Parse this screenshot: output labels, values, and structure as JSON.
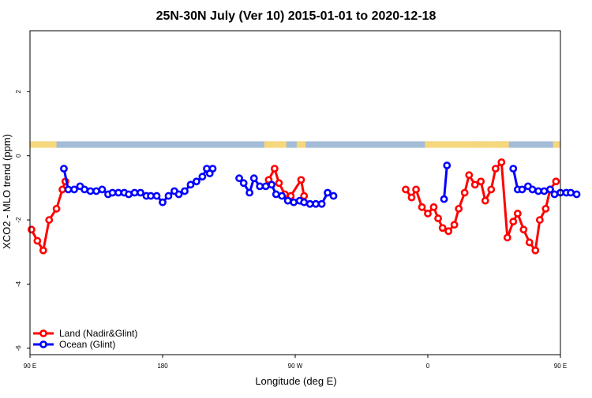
{
  "chart_data": {
    "type": "line",
    "title": "25N-30N July (Ver 10)   2015-01-01 to 2020-12-18",
    "xlabel": "Longitude (deg E)",
    "ylabel": "XCO2 - MLO trend (ppm)",
    "xlim": [
      90,
      450
    ],
    "ylim": [
      -6.2,
      3.9
    ],
    "x_ticks": [
      {
        "value": 90,
        "label": "90 E"
      },
      {
        "value": 180,
        "label": "180"
      },
      {
        "value": 270,
        "label": "90 W"
      },
      {
        "value": 360,
        "label": "0"
      },
      {
        "value": 450,
        "label": "90 E"
      },
      {
        "value": 540,
        "label": "180"
      }
    ],
    "y_ticks": [
      {
        "value": -6,
        "label": "-6"
      },
      {
        "value": -4,
        "label": "-4"
      },
      {
        "value": -2,
        "label": "-2"
      },
      {
        "value": 0,
        "label": "0"
      },
      {
        "value": 2,
        "label": "2"
      }
    ],
    "x_scale_note": "",
    "grid": false,
    "legend_position": "bottom-left",
    "land_mask": {
      "y_range": [
        0.25,
        0.45
      ],
      "ocean_color": "#a3bcd8",
      "land_color": "#f5d77c",
      "land_segments": [
        [
          90,
          108
        ],
        [
          249,
          264
        ],
        [
          271,
          277
        ],
        [
          358,
          415
        ],
        [
          393,
          396
        ],
        [
          408,
          412
        ],
        [
          445,
          450
        ]
      ]
    },
    "series": [
      {
        "name": "Land (Nadir&Glint)",
        "color": "#ff0000",
        "segments": [
          [
            [
              91,
              -2.3
            ],
            [
              95,
              -2.65
            ],
            [
              99,
              -2.95
            ],
            [
              103,
              -2.0
            ],
            [
              108,
              -1.65
            ],
            [
              112,
              -1.05
            ],
            [
              114,
              -0.8
            ]
          ],
          [
            [
              252,
              -0.75
            ],
            [
              256,
              -0.4
            ],
            [
              259,
              -0.85
            ],
            [
              263,
              -1.2
            ],
            [
              267,
              -1.25
            ],
            [
              274,
              -0.75
            ],
            [
              276,
              -1.25
            ]
          ],
          [
            [
              345,
              -1.05
            ],
            [
              349,
              -1.3
            ],
            [
              352,
              -1.05
            ],
            [
              356,
              -1.6
            ],
            [
              360,
              -1.8
            ],
            [
              364,
              -1.6
            ],
            [
              367,
              -1.95
            ],
            [
              370,
              -2.25
            ],
            [
              374,
              -2.35
            ],
            [
              378,
              -2.15
            ],
            [
              381,
              -1.65
            ],
            [
              385,
              -1.15
            ],
            [
              388,
              -0.6
            ],
            [
              392,
              -0.9
            ],
            [
              396,
              -0.8
            ],
            [
              399,
              -1.4
            ],
            [
              403,
              -1.05
            ],
            [
              406,
              -0.4
            ],
            [
              410,
              -0.2
            ],
            [
              414,
              -2.55
            ],
            [
              418,
              -2.05
            ],
            [
              421,
              -1.8
            ],
            [
              425,
              -2.3
            ],
            [
              429,
              -2.7
            ],
            [
              433,
              -2.95
            ],
            [
              436,
              -2.0
            ],
            [
              440,
              -1.65
            ],
            [
              443,
              -1.05
            ],
            [
              447,
              -0.8
            ]
          ]
        ]
      },
      {
        "name": "Ocean (Glint)",
        "color": "#0000ff",
        "segments": [
          [
            [
              113,
              -0.4
            ],
            [
              116,
              -1.05
            ],
            [
              120,
              -1.05
            ],
            [
              124,
              -0.95
            ],
            [
              127,
              -1.05
            ],
            [
              131,
              -1.1
            ],
            [
              135,
              -1.1
            ],
            [
              139,
              -1.05
            ],
            [
              143,
              -1.2
            ],
            [
              146,
              -1.15
            ],
            [
              150,
              -1.15
            ],
            [
              154,
              -1.15
            ],
            [
              157,
              -1.2
            ],
            [
              161,
              -1.15
            ],
            [
              165,
              -1.15
            ],
            [
              169,
              -1.25
            ],
            [
              172,
              -1.25
            ],
            [
              176,
              -1.25
            ],
            [
              180,
              -1.45
            ],
            [
              184,
              -1.25
            ],
            [
              188,
              -1.1
            ],
            [
              191,
              -1.2
            ],
            [
              195,
              -1.1
            ],
            [
              199,
              -0.9
            ],
            [
              203,
              -0.8
            ],
            [
              207,
              -0.65
            ],
            [
              210,
              -0.4
            ],
            [
              212,
              -0.55
            ],
            [
              214,
              -0.4
            ]
          ],
          [
            [
              232,
              -0.7
            ],
            [
              235,
              -0.85
            ],
            [
              239,
              -1.15
            ],
            [
              242,
              -0.7
            ],
            [
              246,
              -0.95
            ],
            [
              250,
              -0.95
            ],
            [
              254,
              -0.9
            ],
            [
              257,
              -1.2
            ],
            [
              261,
              -1.25
            ],
            [
              265,
              -1.4
            ],
            [
              269,
              -1.45
            ],
            [
              273,
              -1.4
            ],
            [
              276,
              -1.45
            ],
            [
              280,
              -1.5
            ],
            [
              284,
              -1.5
            ],
            [
              288,
              -1.5
            ],
            [
              292,
              -1.15
            ],
            [
              296,
              -1.25
            ]
          ],
          [
            [
              371,
              -1.35
            ],
            [
              373,
              -0.3
            ]
          ],
          [
            [
              418,
              -0.4
            ],
            [
              421,
              -1.05
            ],
            [
              424,
              -1.05
            ],
            [
              428,
              -0.95
            ],
            [
              431,
              -1.05
            ],
            [
              435,
              -1.1
            ],
            [
              439,
              -1.1
            ],
            [
              443,
              -1.05
            ],
            [
              446,
              -1.2
            ],
            [
              450,
              -1.15
            ],
            [
              454,
              -1.15
            ],
            [
              457,
              -1.15
            ],
            [
              461,
              -1.2
            ]
          ]
        ]
      }
    ]
  }
}
